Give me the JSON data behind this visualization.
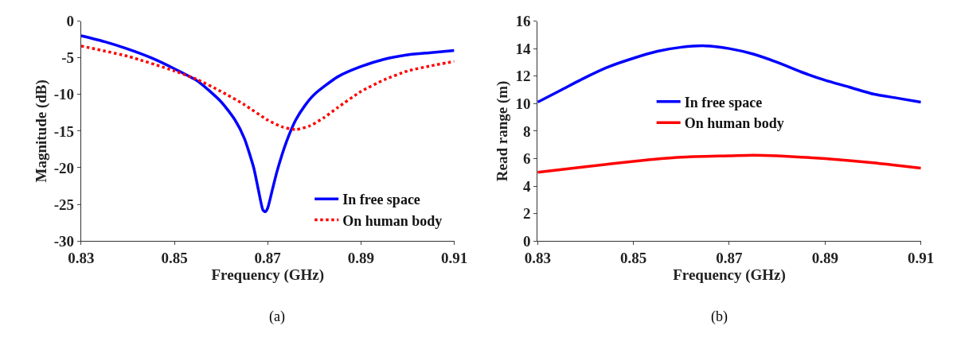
{
  "chart_data": [
    {
      "type": "line",
      "xlabel": "Frequency (GHz)",
      "ylabel": "Magnitude (dB)",
      "xlim": [
        0.83,
        0.91
      ],
      "xticks": [
        0.83,
        0.85,
        0.87,
        0.89,
        0.91
      ],
      "ylim": [
        -30,
        0
      ],
      "yticks": [
        -30,
        -25,
        -20,
        -15,
        -10,
        -5,
        0
      ],
      "legend": "bottom right",
      "annotations": [
        "(a)"
      ],
      "series": [
        {
          "name": "In free space",
          "color": "#0000ff",
          "line_style": "solid",
          "x": [
            0.83,
            0.835,
            0.84,
            0.845,
            0.85,
            0.855,
            0.86,
            0.863,
            0.865,
            0.867,
            0.868,
            0.869,
            0.8695,
            0.87,
            0.871,
            0.872,
            0.874,
            0.876,
            0.878,
            0.88,
            0.885,
            0.89,
            0.895,
            0.9,
            0.905,
            0.91
          ],
          "values": [
            -2,
            -2.8,
            -3.8,
            -5.0,
            -6.5,
            -8.2,
            -11,
            -13.5,
            -16,
            -20,
            -23,
            -25.8,
            -26,
            -25.5,
            -23,
            -20.5,
            -16.5,
            -13.5,
            -11.5,
            -10,
            -7.6,
            -6.2,
            -5.2,
            -4.6,
            -4.3,
            -4.0
          ]
        },
        {
          "name": "On human body",
          "color": "#ff0000",
          "line_style": "dotted",
          "x": [
            0.83,
            0.84,
            0.85,
            0.855,
            0.86,
            0.865,
            0.87,
            0.873,
            0.876,
            0.879,
            0.882,
            0.885,
            0.89,
            0.895,
            0.9,
            0.905,
            0.91
          ],
          "values": [
            -3.4,
            -4.8,
            -6.8,
            -8.0,
            -9.6,
            -11.4,
            -13.5,
            -14.4,
            -14.8,
            -14.3,
            -13.2,
            -11.8,
            -9.6,
            -8.0,
            -6.8,
            -6.1,
            -5.5
          ]
        }
      ]
    },
    {
      "type": "line",
      "xlabel": "Frequency (GHz)",
      "ylabel": "Read range (m)",
      "xlim": [
        0.83,
        0.91
      ],
      "xticks": [
        0.83,
        0.85,
        0.87,
        0.89,
        0.91
      ],
      "ylim": [
        0,
        16
      ],
      "yticks": [
        0,
        2,
        4,
        6,
        8,
        10,
        12,
        14,
        16
      ],
      "legend": "center",
      "annotations": [
        "(b)"
      ],
      "series": [
        {
          "name": "In free space",
          "color": "#0000ff",
          "line_style": "solid",
          "x": [
            0.83,
            0.835,
            0.84,
            0.845,
            0.85,
            0.855,
            0.86,
            0.865,
            0.87,
            0.875,
            0.88,
            0.885,
            0.89,
            0.895,
            0.9,
            0.905,
            0.91
          ],
          "values": [
            10.1,
            11.0,
            11.9,
            12.7,
            13.3,
            13.8,
            14.1,
            14.2,
            14.0,
            13.6,
            13.0,
            12.3,
            11.7,
            11.2,
            10.7,
            10.4,
            10.1
          ]
        },
        {
          "name": "On human body",
          "color": "#ff0000",
          "line_style": "solid",
          "x": [
            0.83,
            0.84,
            0.85,
            0.86,
            0.87,
            0.875,
            0.88,
            0.89,
            0.9,
            0.91
          ],
          "values": [
            5.0,
            5.4,
            5.8,
            6.1,
            6.2,
            6.25,
            6.2,
            6.0,
            5.7,
            5.3
          ]
        }
      ]
    }
  ]
}
